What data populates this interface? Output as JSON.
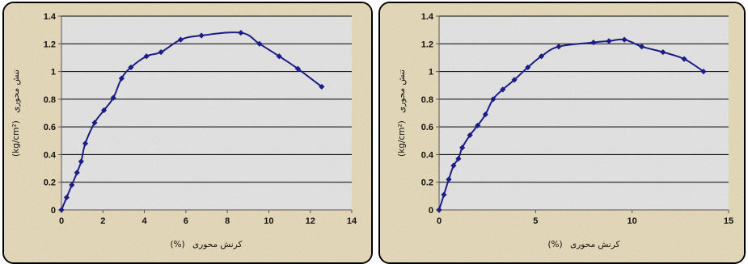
{
  "colors": {
    "panel_bg": "#e7dcc0",
    "plot_bg": "#e9e9e9",
    "grid": "#000000",
    "series": "#1c1c86"
  },
  "chart_data": [
    {
      "type": "scatter",
      "ylabel": {
        "unit": "(kg/cm²)",
        "text": "تنش محوری"
      },
      "xlabel": {
        "unit": "(%)",
        "text": "کرنش محوری"
      },
      "xlim": [
        0,
        14
      ],
      "ylim": [
        0,
        1.4
      ],
      "xticks": [
        "0",
        "2",
        "4",
        "6",
        "8",
        "10",
        "12",
        "14"
      ],
      "xtick_values": [
        0,
        2,
        4,
        6,
        8,
        10,
        12,
        14
      ],
      "yticks": [
        "0",
        "0.2",
        "0.4",
        "0.6",
        "0.8",
        "1",
        "1.2",
        "1.4"
      ],
      "ytick_values": [
        0,
        0.2,
        0.4,
        0.6,
        0.8,
        1.0,
        1.2,
        1.4
      ],
      "grid": true,
      "series": [
        {
          "x": [
            0,
            0.25,
            0.5,
            0.75,
            0.95,
            1.15,
            1.6,
            2.05,
            2.5,
            2.9,
            3.35,
            4.1,
            4.8,
            5.75,
            6.75,
            8.65,
            9.55,
            10.5,
            11.4,
            12.55
          ],
          "y": [
            0,
            0.09,
            0.18,
            0.27,
            0.35,
            0.48,
            0.63,
            0.72,
            0.81,
            0.95,
            1.03,
            1.11,
            1.14,
            1.23,
            1.26,
            1.28,
            1.2,
            1.11,
            1.02,
            0.89
          ]
        }
      ]
    },
    {
      "type": "scatter",
      "ylabel": {
        "unit": "(kg/cm²)",
        "text": "تنش محوری"
      },
      "xlabel": {
        "unit": "(%)",
        "text": "کرنش محوری"
      },
      "xlim": [
        0,
        15
      ],
      "ylim": [
        0,
        1.4
      ],
      "xticks": [
        "0",
        "5",
        "10",
        "15"
      ],
      "xtick_values": [
        0,
        5,
        10,
        15
      ],
      "yticks": [
        "0",
        "0.2",
        "0.4",
        "0.6",
        "0.8",
        "1",
        "1.2",
        "1.4"
      ],
      "ytick_values": [
        0,
        0.2,
        0.4,
        0.6,
        0.8,
        1.0,
        1.2,
        1.4
      ],
      "grid": true,
      "series": [
        {
          "x": [
            0,
            0.25,
            0.5,
            0.75,
            1.0,
            1.2,
            1.6,
            2.0,
            2.4,
            2.8,
            3.3,
            3.9,
            4.6,
            5.3,
            6.2,
            8.0,
            8.8,
            9.6,
            10.5,
            11.6,
            12.7,
            13.7
          ],
          "y": [
            0,
            0.11,
            0.22,
            0.32,
            0.37,
            0.45,
            0.54,
            0.61,
            0.69,
            0.8,
            0.87,
            0.94,
            1.03,
            1.11,
            1.18,
            1.21,
            1.22,
            1.23,
            1.18,
            1.14,
            1.09,
            1.0
          ]
        }
      ]
    }
  ]
}
